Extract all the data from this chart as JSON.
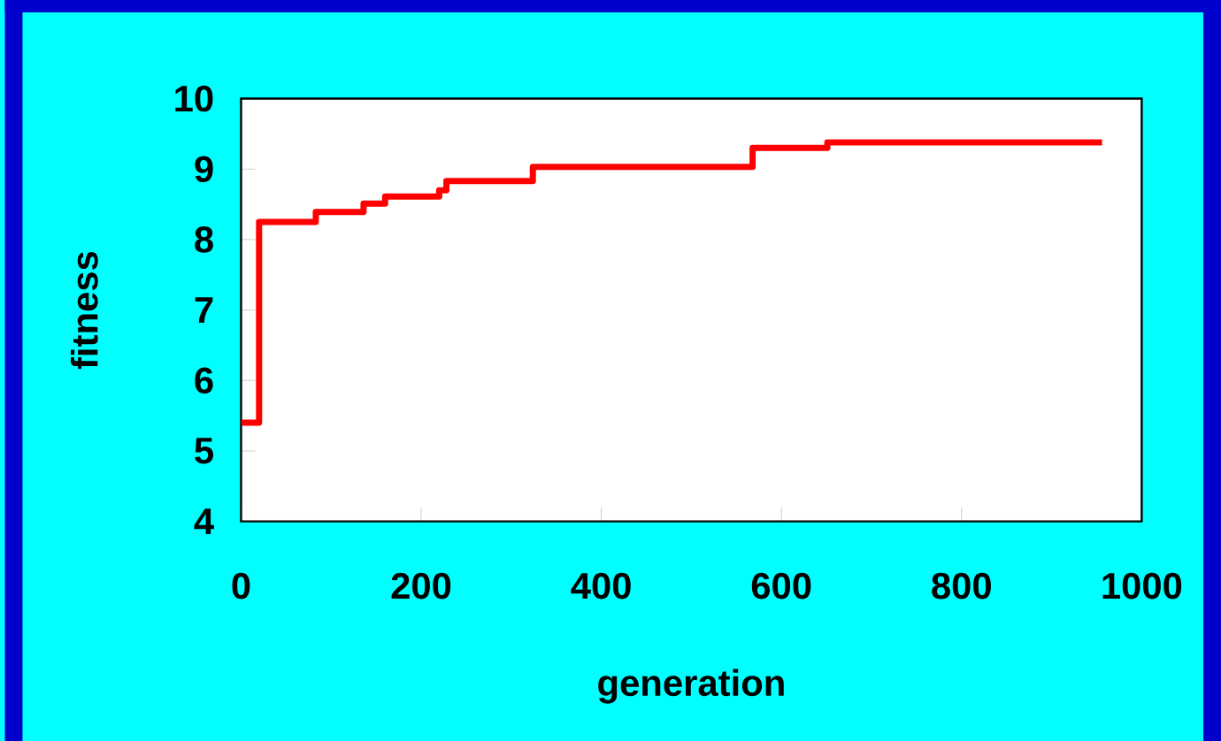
{
  "chart_data": {
    "type": "step",
    "xlabel": "generation",
    "ylabel": "fitness",
    "x": [
      0,
      20,
      83,
      136,
      160,
      220,
      228,
      324,
      568,
      651,
      956
    ],
    "values": [
      5.4,
      8.25,
      8.39,
      8.51,
      8.61,
      8.7,
      8.83,
      9.03,
      9.3,
      9.38,
      9.38
    ],
    "color": "#ff0000",
    "xlim": [
      0,
      1000
    ],
    "ylim": [
      4,
      10
    ],
    "xticks": [
      0,
      200,
      400,
      600,
      800,
      1000
    ],
    "yticks": [
      4,
      5,
      6,
      7,
      8,
      9,
      10
    ]
  }
}
